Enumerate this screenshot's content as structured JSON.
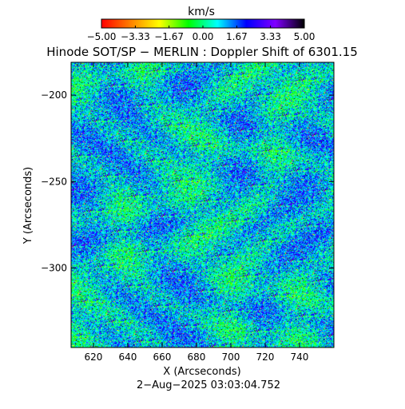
{
  "chart_data": {
    "type": "heatmap",
    "title": "Hinode SOT/SP − MERLIN : Doppler Shift of 6301.15",
    "xlabel": "X (Arcseconds)",
    "ylabel": "Y (Arcseconds)",
    "xlim": [
      607,
      760
    ],
    "ylim": [
      -346,
      -181
    ],
    "x_ticks": [
      620,
      640,
      660,
      680,
      700,
      720,
      740
    ],
    "x_tick_labels": [
      "620",
      "640",
      "660",
      "680",
      "700",
      "720",
      "740"
    ],
    "y_ticks": [
      -200,
      -250,
      -300
    ],
    "y_tick_labels": [
      "−200",
      "−250",
      "−300"
    ],
    "colorbar": {
      "label": "km/s",
      "range": [
        -5.0,
        5.0
      ],
      "ticks": [
        -5.0,
        -3.33,
        -1.67,
        0.0,
        1.67,
        3.33,
        5.0
      ],
      "tick_labels": [
        "−5.00",
        "−3.33",
        "−1.67",
        "0.00",
        "1.67",
        "3.33",
        "5.00"
      ],
      "colormap": [
        "#ff0000",
        "#ff8000",
        "#ffff00",
        "#00ff00",
        "#00ffff",
        "#0000ff",
        "#8000ff",
        "#000000"
      ]
    },
    "dominant_value_kms": 0.8,
    "timestamp": "2−Aug−2025 03:03:04.752"
  }
}
